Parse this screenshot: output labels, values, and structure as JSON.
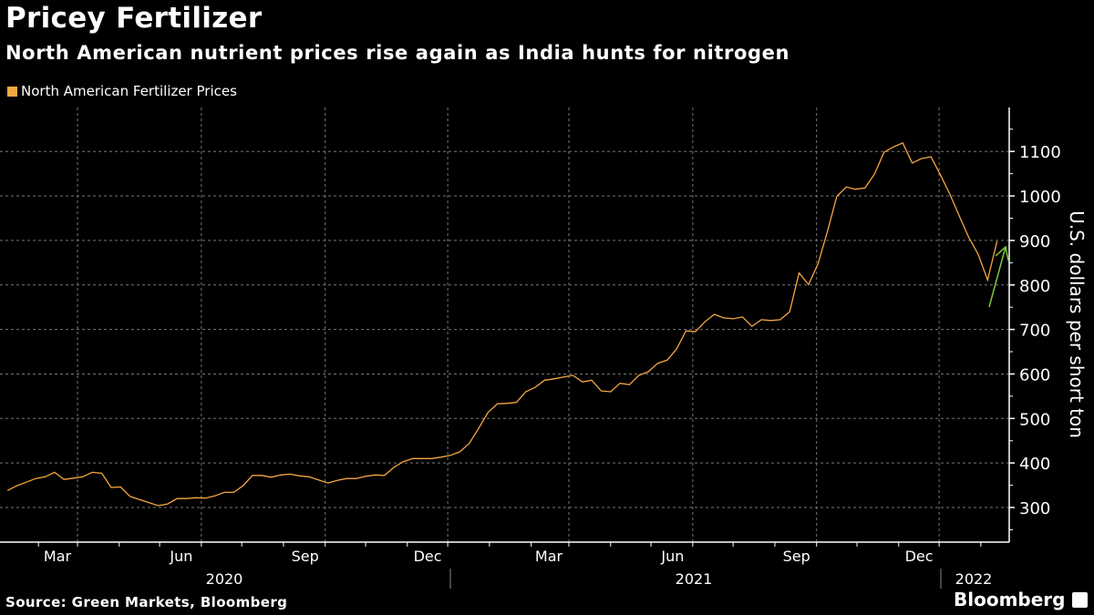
{
  "header": {
    "title": "Pricey Fertilizer",
    "subtitle": "North American nutrient prices rise again as India hunts for nitrogen"
  },
  "footer": {
    "source": "Source: Green Markets, Bloomberg",
    "brand": "Bloomberg"
  },
  "colors": {
    "series": "#f5a742",
    "annotation_arrow": "#7ac943",
    "background": "#000000"
  },
  "chart_data": {
    "type": "line",
    "title": "Pricey Fertilizer",
    "legend": [
      "North American Fertilizer Prices"
    ],
    "legend_position": "top-left",
    "ylabel": "U.S. dollars per short ton",
    "xlabel": "",
    "ylim": [
      225,
      1200
    ],
    "yticks": [
      300,
      400,
      500,
      600,
      700,
      800,
      900,
      1000,
      1100
    ],
    "ytick_labels": [
      "300",
      "400",
      "500",
      "600",
      "700",
      "800",
      "900",
      "1000",
      "1100"
    ],
    "x_month_labels": [
      "Mar",
      "Jun",
      "Sep",
      "Dec",
      "Mar",
      "Jun",
      "Sep",
      "Dec"
    ],
    "x_month_dates": [
      "2020-03-01",
      "2020-06-01",
      "2020-09-01",
      "2020-12-01",
      "2021-03-01",
      "2021-06-01",
      "2021-09-01",
      "2021-12-01"
    ],
    "x_year_labels": [
      "2020",
      "2021",
      "2022"
    ],
    "xlim": [
      "2020-01-04",
      "2022-02-25"
    ],
    "grid": true,
    "frequency": "weekly",
    "start_date": "2020-01-09",
    "series": [
      {
        "name": "North American Fertilizer Prices",
        "values": [
          338,
          349,
          357,
          365,
          369,
          379,
          363,
          366,
          369,
          379,
          377,
          345,
          346,
          325,
          318,
          311,
          304,
          308,
          320,
          320,
          322,
          321,
          326,
          334,
          334,
          349,
          372,
          372,
          368,
          373,
          375,
          371,
          369,
          362,
          355,
          361,
          365,
          365,
          370,
          373,
          372,
          390,
          403,
          410,
          410,
          410,
          413,
          417,
          425,
          444,
          478,
          514,
          533,
          534,
          536,
          560,
          570,
          586,
          589,
          593,
          597,
          582,
          586,
          562,
          560,
          579,
          576,
          597,
          605,
          624,
          631,
          656,
          697,
          695,
          717,
          734,
          726,
          724,
          728,
          707,
          722,
          720,
          722,
          740,
          827,
          801,
          847,
          919,
          999,
          1020,
          1015,
          1018,
          1049,
          1098,
          1110,
          1119,
          1074,
          1084,
          1088,
          1047,
          1004,
          955,
          907,
          869,
          811,
          898
        ]
      }
    ],
    "annotations": [
      {
        "type": "arrow",
        "direction": "up",
        "note": "green upward arrow beside latest rebound"
      }
    ]
  }
}
